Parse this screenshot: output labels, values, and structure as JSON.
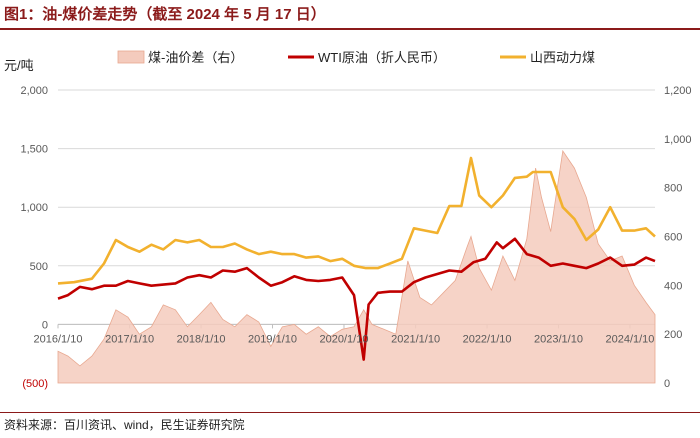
{
  "title": "图1：油-煤价差走势（截至 2024 年 5 月 17 日）",
  "source": "资料来源：百川资讯、wind，民生证券研究院",
  "chart_data": {
    "type": "line+area",
    "unit_left": "元/吨",
    "left_axis": {
      "min": -500,
      "max": 2000,
      "ticks": [
        2000,
        1500,
        1000,
        500,
        0,
        -500
      ],
      "tick_labels": [
        "2,000",
        "1,500",
        "1,000",
        "500",
        "0",
        "(500)"
      ]
    },
    "right_axis": {
      "min": 0,
      "max": 1200,
      "ticks": [
        1200,
        1000,
        800,
        600,
        400,
        200,
        0
      ],
      "tick_labels": [
        "1,200",
        "1,000",
        "800",
        "600",
        "400",
        "200",
        "0"
      ]
    },
    "x_tick_labels": [
      "2016/1/10",
      "2017/1/10",
      "2018/1/10",
      "2019/1/10",
      "2020/1/10",
      "2021/1/10",
      "2022/1/10",
      "2023/1/10",
      "2024/1/10"
    ],
    "x_range": [
      "2016-01-10",
      "2024-05-17"
    ],
    "legend_position": "top",
    "series": [
      {
        "name": "煤-油价差（右）",
        "kind": "area",
        "axis": "right",
        "color": "#f4cbbd",
        "stroke": "#e8a890",
        "x": [
          "2016-01-10",
          "2016-03-01",
          "2016-05-01",
          "2016-07-01",
          "2016-09-01",
          "2016-11-01",
          "2017-01-01",
          "2017-03-01",
          "2017-05-01",
          "2017-07-01",
          "2017-09-01",
          "2017-11-01",
          "2018-01-01",
          "2018-03-01",
          "2018-05-01",
          "2018-07-01",
          "2018-09-01",
          "2018-11-01",
          "2019-01-01",
          "2019-03-01",
          "2019-05-01",
          "2019-07-01",
          "2019-09-01",
          "2019-11-01",
          "2020-01-01",
          "2020-03-01",
          "2020-04-20",
          "2020-06-01",
          "2020-08-01",
          "2020-10-01",
          "2020-12-01",
          "2021-02-01",
          "2021-04-01",
          "2021-06-01",
          "2021-08-01",
          "2021-10-01",
          "2021-10-20",
          "2021-12-01",
          "2022-02-01",
          "2022-04-01",
          "2022-06-01",
          "2022-08-01",
          "2022-09-15",
          "2022-10-15",
          "2022-12-01",
          "2023-02-01",
          "2023-04-01",
          "2023-06-01",
          "2023-08-01",
          "2023-10-01",
          "2023-12-01",
          "2024-02-01",
          "2024-04-01",
          "2024-05-17"
        ],
        "values": [
          130,
          110,
          70,
          110,
          180,
          300,
          270,
          200,
          230,
          320,
          300,
          230,
          280,
          330,
          260,
          230,
          280,
          250,
          150,
          230,
          240,
          200,
          230,
          190,
          220,
          230,
          300,
          240,
          220,
          200,
          500,
          350,
          320,
          370,
          420,
          560,
          600,
          470,
          380,
          520,
          420,
          590,
          880,
          760,
          620,
          950,
          880,
          760,
          570,
          500,
          520,
          400,
          330,
          280
        ]
      },
      {
        "name": "WTI原油（折人民币）",
        "kind": "line",
        "axis": "left",
        "color": "#c00000",
        "x": [
          "2016-01-10",
          "2016-03-01",
          "2016-05-01",
          "2016-07-01",
          "2016-09-01",
          "2016-11-01",
          "2017-01-01",
          "2017-03-01",
          "2017-05-01",
          "2017-07-01",
          "2017-09-01",
          "2017-11-01",
          "2018-01-01",
          "2018-03-01",
          "2018-05-01",
          "2018-07-01",
          "2018-09-01",
          "2018-11-01",
          "2019-01-01",
          "2019-03-01",
          "2019-05-01",
          "2019-07-01",
          "2019-09-01",
          "2019-11-01",
          "2020-01-01",
          "2020-03-01",
          "2020-04-20",
          "2020-05-15",
          "2020-07-01",
          "2020-09-01",
          "2020-11-01",
          "2021-01-01",
          "2021-03-01",
          "2021-05-01",
          "2021-07-01",
          "2021-09-01",
          "2021-11-01",
          "2022-01-01",
          "2022-03-01",
          "2022-04-01",
          "2022-06-01",
          "2022-08-01",
          "2022-10-01",
          "2022-12-01",
          "2023-02-01",
          "2023-04-01",
          "2023-06-01",
          "2023-08-01",
          "2023-10-01",
          "2023-12-01",
          "2024-02-01",
          "2024-04-01",
          "2024-05-17"
        ],
        "values": [
          220,
          250,
          320,
          300,
          330,
          330,
          370,
          350,
          330,
          340,
          350,
          400,
          420,
          400,
          460,
          450,
          480,
          400,
          330,
          360,
          410,
          380,
          370,
          380,
          400,
          250,
          -300,
          170,
          270,
          280,
          280,
          360,
          400,
          430,
          460,
          450,
          530,
          560,
          700,
          650,
          730,
          600,
          570,
          500,
          520,
          500,
          480,
          520,
          570,
          500,
          510,
          570,
          540
        ]
      },
      {
        "name": "山西动力煤",
        "kind": "line",
        "axis": "left",
        "color": "#f2b12e",
        "x": [
          "2016-01-10",
          "2016-04-01",
          "2016-07-01",
          "2016-09-01",
          "2016-11-01",
          "2017-01-01",
          "2017-03-01",
          "2017-05-01",
          "2017-07-01",
          "2017-09-01",
          "2017-11-01",
          "2018-01-01",
          "2018-03-01",
          "2018-05-01",
          "2018-07-01",
          "2018-09-01",
          "2018-11-01",
          "2019-01-01",
          "2019-03-01",
          "2019-05-01",
          "2019-07-01",
          "2019-09-01",
          "2019-11-01",
          "2020-01-01",
          "2020-03-01",
          "2020-05-01",
          "2020-07-01",
          "2020-09-01",
          "2020-11-01",
          "2021-01-01",
          "2021-03-01",
          "2021-05-01",
          "2021-07-01",
          "2021-09-01",
          "2021-10-20",
          "2021-12-01",
          "2022-02-01",
          "2022-04-01",
          "2022-06-01",
          "2022-08-01",
          "2022-09-01",
          "2022-10-01",
          "2022-12-01",
          "2023-02-01",
          "2023-04-01",
          "2023-06-01",
          "2023-08-01",
          "2023-10-01",
          "2023-12-01",
          "2024-02-01",
          "2024-04-01",
          "2024-05-17"
        ],
        "values": [
          350,
          360,
          390,
          520,
          720,
          660,
          620,
          680,
          640,
          720,
          700,
          720,
          660,
          660,
          690,
          640,
          600,
          620,
          600,
          600,
          570,
          580,
          540,
          560,
          500,
          480,
          480,
          520,
          560,
          820,
          800,
          780,
          1010,
          1010,
          1420,
          1100,
          1000,
          1100,
          1250,
          1260,
          1300,
          1300,
          1300,
          1000,
          900,
          720,
          810,
          1000,
          800,
          800,
          820,
          750
        ]
      }
    ]
  }
}
